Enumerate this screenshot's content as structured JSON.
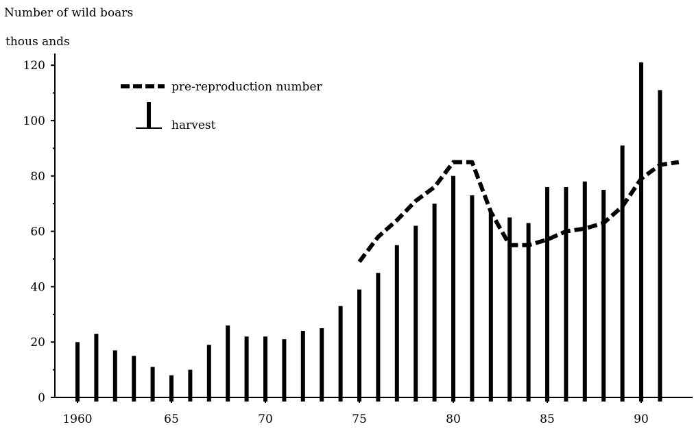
{
  "chart_data": {
    "type": "bar",
    "ylabel_line1": "Number of wild boars",
    "ylabel_line2": "thous ands",
    "ylim": [
      0,
      120
    ],
    "y_ticks": [
      0,
      20,
      40,
      60,
      80,
      100,
      120
    ],
    "xlim": [
      1960,
      1991
    ],
    "x_ticks": [
      {
        "value": 1960,
        "label": "1960"
      },
      {
        "value": 1965,
        "label": "65"
      },
      {
        "value": 1970,
        "label": "70"
      },
      {
        "value": 1975,
        "label": "75"
      },
      {
        "value": 1980,
        "label": "80"
      },
      {
        "value": 1985,
        "label": "85"
      },
      {
        "value": 1990,
        "label": "90"
      }
    ],
    "legend": {
      "placement": "top-left",
      "line_label": "pre-reproduction number",
      "bar_label": "harvest"
    },
    "harvest": {
      "name": "harvest",
      "x": [
        1960,
        1961,
        1962,
        1963,
        1964,
        1965,
        1966,
        1967,
        1968,
        1969,
        1970,
        1971,
        1972,
        1973,
        1974,
        1975,
        1976,
        1977,
        1978,
        1979,
        1980,
        1981,
        1982,
        1983,
        1984,
        1985,
        1986,
        1987,
        1988,
        1989,
        1990,
        1991
      ],
      "values": [
        20,
        23,
        17,
        15,
        11,
        8,
        10,
        19,
        26,
        22,
        22,
        21,
        24,
        25,
        33,
        39,
        45,
        55,
        62,
        70,
        80,
        73,
        67,
        65,
        63,
        76,
        76,
        78,
        75,
        91,
        121,
        111
      ]
    },
    "pre_reproduction": {
      "name": "pre-reproduction number",
      "x": [
        1975,
        1976,
        1977,
        1978,
        1979,
        1980,
        1981,
        1982,
        1983,
        1984,
        1985,
        1986,
        1987,
        1988,
        1989,
        1990,
        1991,
        1992
      ],
      "values": [
        49,
        58,
        64,
        71,
        76,
        85,
        85,
        67,
        55,
        55,
        57,
        60,
        61,
        63,
        69,
        79,
        84,
        85
      ]
    },
    "grid": false
  }
}
